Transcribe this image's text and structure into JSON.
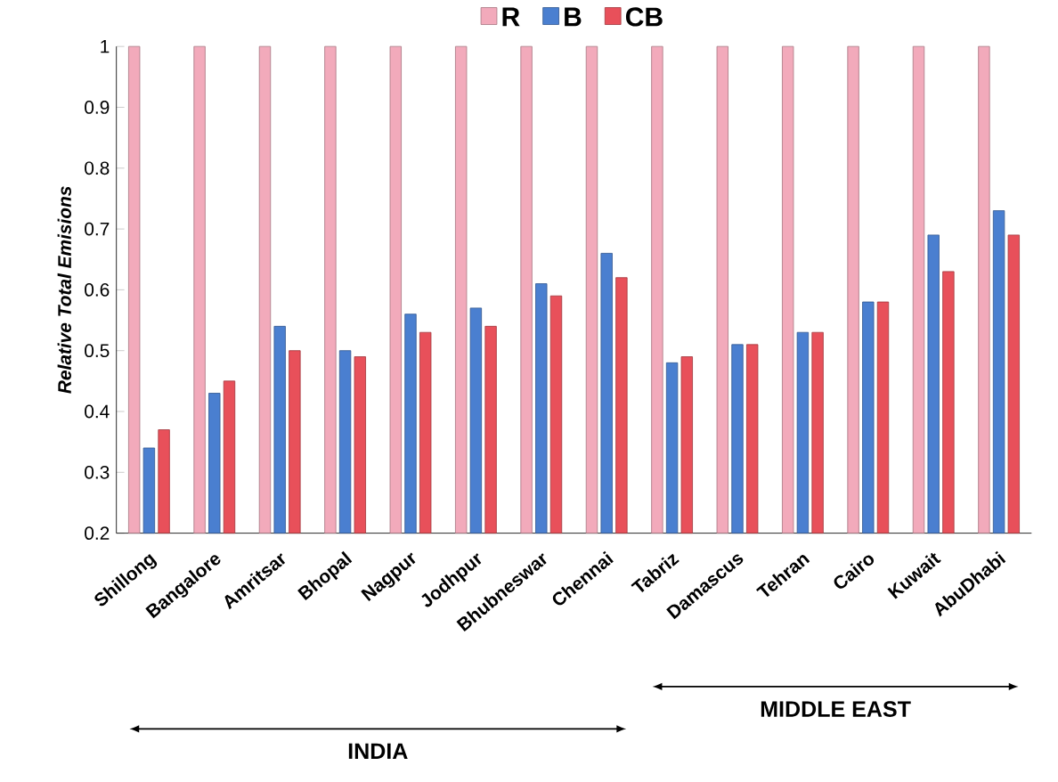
{
  "chart_data": {
    "type": "bar",
    "ylabel": "Relative Total Emisions",
    "categories": [
      "Shillong",
      "Bangalore",
      "Amritsar",
      "Bhopal",
      "Nagpur",
      "Jodhpur",
      "Bhubneswar",
      "Chennai",
      "Tabriz",
      "Damascus",
      "Tehran",
      "Cairo",
      "Kuwait",
      "AbuDhabi"
    ],
    "series": [
      {
        "name": "R",
        "color": "#f2aabb",
        "values": [
          1,
          1,
          1,
          1,
          1,
          1,
          1,
          1,
          1,
          1,
          1,
          1,
          1,
          1
        ]
      },
      {
        "name": "B",
        "color": "#4a7fd0",
        "values": [
          0.34,
          0.43,
          0.54,
          0.5,
          0.56,
          0.57,
          0.61,
          0.66,
          0.48,
          0.51,
          0.53,
          0.58,
          0.69,
          0.73
        ]
      },
      {
        "name": "CB",
        "color": "#e8505a",
        "values": [
          0.37,
          0.45,
          0.5,
          0.49,
          0.53,
          0.54,
          0.59,
          0.62,
          0.49,
          0.51,
          0.53,
          0.58,
          0.63,
          0.69
        ]
      }
    ],
    "ylim": [
      0.2,
      1
    ],
    "yticks": [
      0.2,
      0.3,
      0.4,
      0.5,
      0.6,
      0.7,
      0.8,
      0.9,
      1
    ],
    "legend": "top",
    "annotations": [
      "INDIA",
      "MIDDLE EAST"
    ]
  }
}
